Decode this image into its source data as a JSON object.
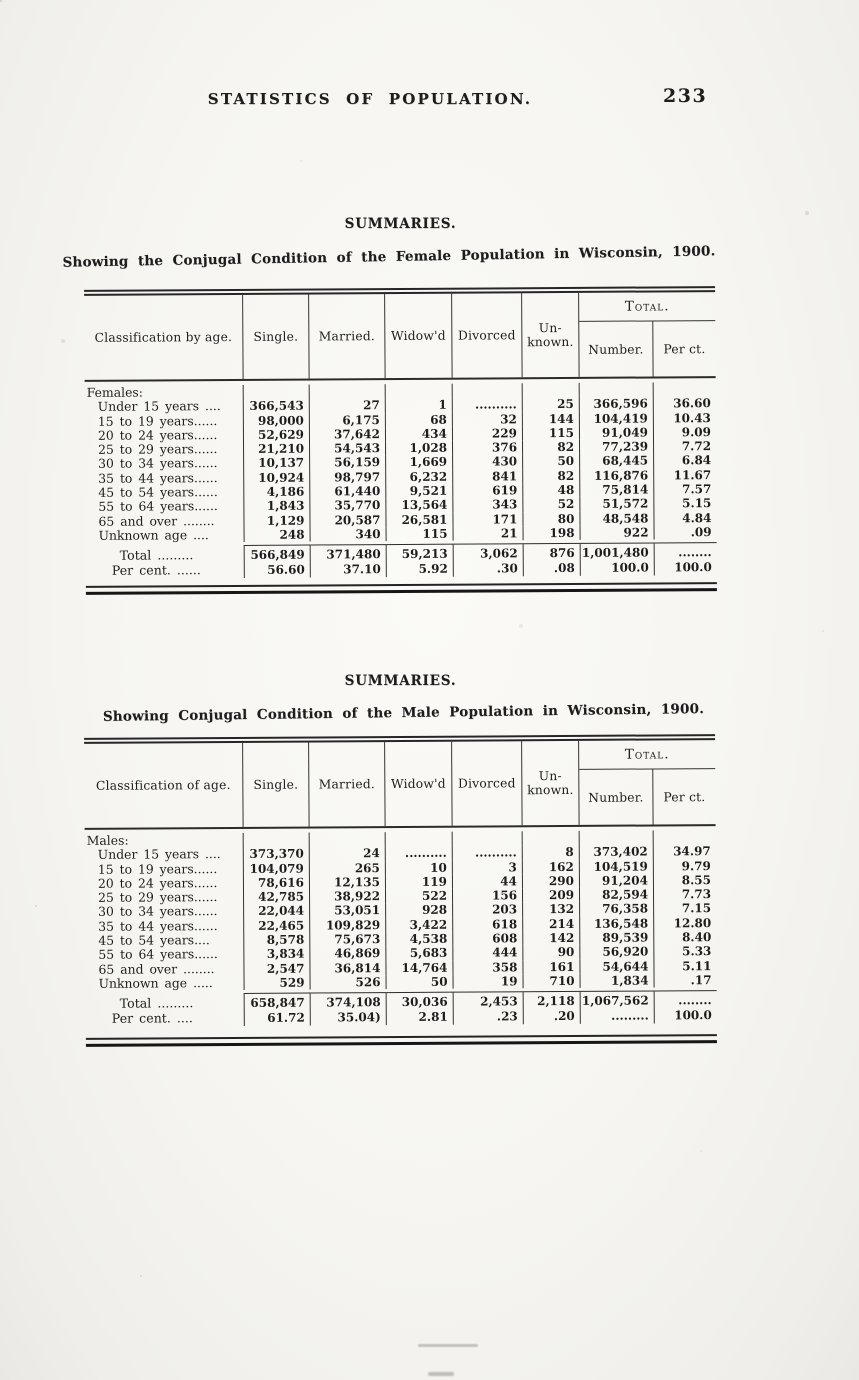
{
  "colors": {
    "paper": "#f6f5f1",
    "ink": "#1d1d1d"
  },
  "page_header": {
    "title": "STATISTICS OF POPULATION.",
    "page_number": "233"
  },
  "column_keys": [
    "single",
    "married",
    "widowed",
    "divorced",
    "unknown",
    "number",
    "per_ct"
  ],
  "sections": [
    {
      "heading": "SUMMARIES.",
      "caption": "Showing the Conjugal Condition of the Female Population in Wisconsin, 1900.",
      "table": {
        "col_headers": {
          "classification": "Classification by age.",
          "single": "Single.",
          "married": "Married.",
          "widowed": "Widow'd",
          "divorced": "Divorced",
          "unknown_line1": "Un-",
          "unknown_line2": "known.",
          "total": "Total.",
          "number": "Number.",
          "per_ct": "Per ct."
        },
        "group_label": "Females:",
        "rows": [
          {
            "label": "Under 15 years ....",
            "single": "366,543",
            "married": "27",
            "widowed": "1",
            "divorced": "..........",
            "unknown": "25",
            "number": "366,596",
            "per_ct": "36.60"
          },
          {
            "label": "15 to 19 years......",
            "single": "98,000",
            "married": "6,175",
            "widowed": "68",
            "divorced": "32",
            "unknown": "144",
            "number": "104,419",
            "per_ct": "10.43"
          },
          {
            "label": "20 to 24 years......",
            "single": "52,629",
            "married": "37,642",
            "widowed": "434",
            "divorced": "229",
            "unknown": "115",
            "number": "91,049",
            "per_ct": "9.09"
          },
          {
            "label": "25 to 29 years......",
            "single": "21,210",
            "married": "54,543",
            "widowed": "1,028",
            "divorced": "376",
            "unknown": "82",
            "number": "77,239",
            "per_ct": "7.72"
          },
          {
            "label": "30 to 34 years......",
            "single": "10,137",
            "married": "56,159",
            "widowed": "1,669",
            "divorced": "430",
            "unknown": "50",
            "number": "68,445",
            "per_ct": "6.84"
          },
          {
            "label": "35 to 44 years......",
            "single": "10,924",
            "married": "98,797",
            "widowed": "6,232",
            "divorced": "841",
            "unknown": "82",
            "number": "116,876",
            "per_ct": "11.67"
          },
          {
            "label": "45 to 54 years......",
            "single": "4,186",
            "married": "61,440",
            "widowed": "9,521",
            "divorced": "619",
            "unknown": "48",
            "number": "75,814",
            "per_ct": "7.57"
          },
          {
            "label": "55 to 64 years......",
            "single": "1,843",
            "married": "35,770",
            "widowed": "13,564",
            "divorced": "343",
            "unknown": "52",
            "number": "51,572",
            "per_ct": "5.15"
          },
          {
            "label": "65 and over ........",
            "single": "1,129",
            "married": "20,587",
            "widowed": "26,581",
            "divorced": "171",
            "unknown": "80",
            "number": "48,548",
            "per_ct": "4.84"
          },
          {
            "label": "Unknown age ....",
            "single": "248",
            "married": "340",
            "widowed": "115",
            "divorced": "21",
            "unknown": "198",
            "number": "922",
            "per_ct": ".09"
          }
        ],
        "total_rows": [
          {
            "label": "Total .........",
            "single": "566,849",
            "married": "371,480",
            "widowed": "59,213",
            "divorced": "3,062",
            "unknown": "876",
            "number": "1,001,480",
            "per_ct": "........"
          },
          {
            "label": "Per cent. ......",
            "single": "56.60",
            "married": "37.10",
            "widowed": "5.92",
            "divorced": ".30",
            "unknown": ".08",
            "number": "100.0",
            "per_ct": "100.0"
          }
        ]
      }
    },
    {
      "heading": "SUMMARIES.",
      "caption": "Showing Conjugal Condition of the Male Population in Wisconsin, 1900.",
      "table": {
        "col_headers": {
          "classification": "Classification of age.",
          "single": "Single.",
          "married": "Married.",
          "widowed": "Widow'd",
          "divorced": "Divorced",
          "unknown_line1": "Un-",
          "unknown_line2": "known.",
          "total": "Total.",
          "number": "Number.",
          "per_ct": "Per ct."
        },
        "group_label": "Males:",
        "rows": [
          {
            "label": "Under 15 years ....",
            "single": "373,370",
            "married": "24",
            "widowed": "..........",
            "divorced": "..........",
            "unknown": "8",
            "number": "373,402",
            "per_ct": "34.97"
          },
          {
            "label": "15 to 19 years......",
            "single": "104,079",
            "married": "265",
            "widowed": "10",
            "divorced": "3",
            "unknown": "162",
            "number": "104,519",
            "per_ct": "9.79"
          },
          {
            "label": "20 to 24 years......",
            "single": "78,616",
            "married": "12,135",
            "widowed": "119",
            "divorced": "44",
            "unknown": "290",
            "number": "91,204",
            "per_ct": "8.55"
          },
          {
            "label": "25 to 29 years......",
            "single": "42,785",
            "married": "38,922",
            "widowed": "522",
            "divorced": "156",
            "unknown": "209",
            "number": "82,594",
            "per_ct": "7.73"
          },
          {
            "label": "30 to 34 years......",
            "single": "22,044",
            "married": "53,051",
            "widowed": "928",
            "divorced": "203",
            "unknown": "132",
            "number": "76,358",
            "per_ct": "7.15"
          },
          {
            "label": "35 to 44 years......",
            "single": "22,465",
            "married": "109,829",
            "widowed": "3,422",
            "divorced": "618",
            "unknown": "214",
            "number": "136,548",
            "per_ct": "12.80"
          },
          {
            "label": "45 to 54 years....",
            "single": "8,578",
            "married": "75,673",
            "widowed": "4,538",
            "divorced": "608",
            "unknown": "142",
            "number": "89,539",
            "per_ct": "8.40"
          },
          {
            "label": "55 to 64 years......",
            "single": "3,834",
            "married": "46,869",
            "widowed": "5,683",
            "divorced": "444",
            "unknown": "90",
            "number": "56,920",
            "per_ct": "5.33"
          },
          {
            "label": "65 and over ........",
            "single": "2,547",
            "married": "36,814",
            "widowed": "14,764",
            "divorced": "358",
            "unknown": "161",
            "number": "54,644",
            "per_ct": "5.11"
          },
          {
            "label": "Unknown age .....",
            "single": "529",
            "married": "526",
            "widowed": "50",
            "divorced": "19",
            "unknown": "710",
            "number": "1,834",
            "per_ct": ".17"
          }
        ],
        "total_rows": [
          {
            "label": "Total .........",
            "single": "658,847",
            "married": "374,108",
            "widowed": "30,036",
            "divorced": "2,453",
            "unknown": "2,118",
            "number": "1,067,562",
            "per_ct": "........"
          },
          {
            "label": "Per cent. ....",
            "single": "61.72",
            "married": "35.04)",
            "widowed": "2.81",
            "divorced": ".23",
            "unknown": ".20",
            "number": ".........",
            "per_ct": "100.0"
          }
        ]
      }
    }
  ]
}
